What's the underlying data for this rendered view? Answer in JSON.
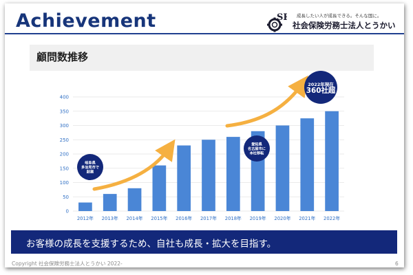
{
  "header": {
    "title": "Achievement",
    "tagline": "成長したい人が成長できる。そんな国に。",
    "company": "社会保険労務士法人とうかい",
    "logo_letters": "SR"
  },
  "section": {
    "heading": "顧問数推移"
  },
  "chart_data": {
    "type": "bar",
    "categories": [
      "2012年",
      "2013年",
      "2014年",
      "2015年",
      "2016年",
      "2017年",
      "2018年",
      "2019年",
      "2020年",
      "2021年",
      "2022年"
    ],
    "values": [
      30,
      60,
      80,
      160,
      230,
      250,
      260,
      280,
      300,
      325,
      350
    ],
    "ylim": [
      0,
      400
    ],
    "yticks": [
      0,
      50,
      100,
      150,
      200,
      250,
      300,
      350,
      400
    ],
    "grid": true,
    "bar_color": "#4a86d6",
    "annotations": [
      {
        "lines": [
          "岐阜県",
          "多治見市で",
          "創業"
        ],
        "year": "2012年"
      },
      {
        "lines": [
          "愛知県",
          "名古屋市に",
          "本社移転"
        ],
        "year": "2019年"
      },
      {
        "lines": [
          "2022年現在",
          "360社超"
        ],
        "year": "2022年"
      }
    ],
    "trend_arrow_color": "#f5b041",
    "annotation_color": "#13287a"
  },
  "banner": {
    "text": "お客様の成長を支援するため、自社も成長・拡大を目指す。"
  },
  "footer": {
    "copyright": "Copyright 社会保険労務士法人とうかい 2022-",
    "page": "6"
  }
}
